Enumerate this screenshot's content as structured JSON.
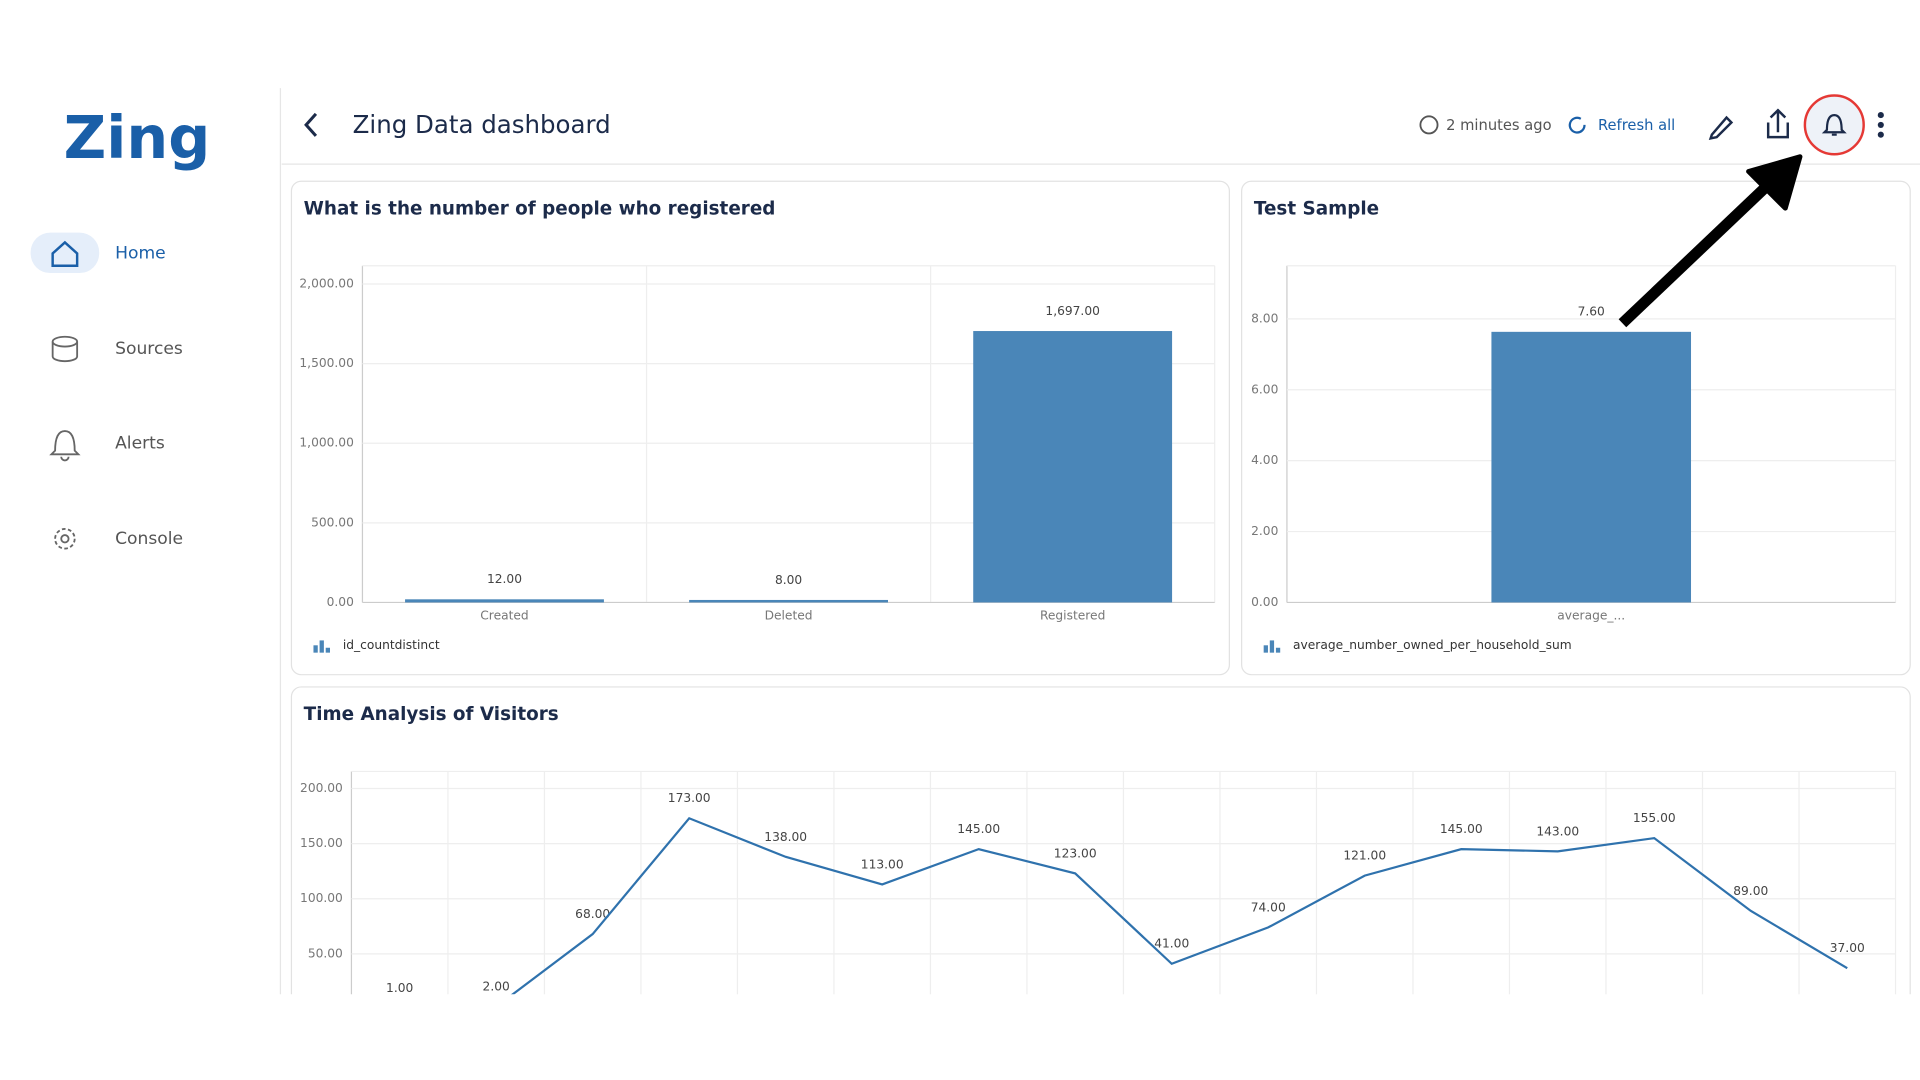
{
  "sidebar": {
    "logo": "Zing",
    "nav": [
      "Home",
      "Sources",
      "Alerts",
      "Console"
    ]
  },
  "header": {
    "title": "Zing Data dashboard",
    "updated": "2 minutes ago",
    "refresh": "Refresh all"
  },
  "chart_data": [
    {
      "type": "bar",
      "title": "What is the number of people who registered",
      "categories": [
        "Created",
        "Deleted",
        "Registered"
      ],
      "values": [
        12,
        8,
        1697
      ],
      "value_labels": [
        "12.00",
        "8.00",
        "1,697.00"
      ],
      "color": "#4a86b8",
      "ylim": [
        0,
        2115
      ],
      "yticks": [
        {
          "value": 0,
          "label": "0.00"
        },
        {
          "value": 500,
          "label": "500.00"
        },
        {
          "value": 1000,
          "label": "1,000.00"
        },
        {
          "value": 1500,
          "label": "1,500.00"
        },
        {
          "value": 2000,
          "label": "2,000.00"
        }
      ],
      "legend": "id_countdistinct",
      "grid": true
    },
    {
      "type": "bar",
      "title": "Test Sample",
      "categories": [
        "average_..."
      ],
      "values": [
        7.6
      ],
      "value_labels": [
        "7.60"
      ],
      "color": "#4a86b8",
      "ylim": [
        0,
        9.5
      ],
      "yticks": [
        {
          "value": 0,
          "label": "0.00"
        },
        {
          "value": 2,
          "label": "2.00"
        },
        {
          "value": 4,
          "label": "4.00"
        },
        {
          "value": 6,
          "label": "6.00"
        },
        {
          "value": 8,
          "label": "8.00"
        }
      ],
      "legend": "average_number_owned_per_household_sum",
      "grid": true
    },
    {
      "type": "line",
      "title": "Time Analysis of Visitors",
      "values": [
        1,
        2,
        68,
        173,
        138,
        113,
        145,
        123,
        41,
        74,
        121,
        145,
        143,
        155,
        89,
        37
      ],
      "value_labels": [
        "1.00",
        "2.00",
        "68.00",
        "173.00",
        "138.00",
        "113.00",
        "145.00",
        "123.00",
        "41.00",
        "74.00",
        "121.00",
        "145.00",
        "143.00",
        "155.00",
        "89.00",
        "37.00"
      ],
      "color": "#2f72ad",
      "ylim": [
        0,
        215.5
      ],
      "yticks": [
        {
          "value": 50,
          "label": "50.00"
        },
        {
          "value": 100,
          "label": "100.00"
        },
        {
          "value": 150,
          "label": "150.00"
        },
        {
          "value": 200,
          "label": "200.00"
        }
      ],
      "grid": true
    }
  ]
}
